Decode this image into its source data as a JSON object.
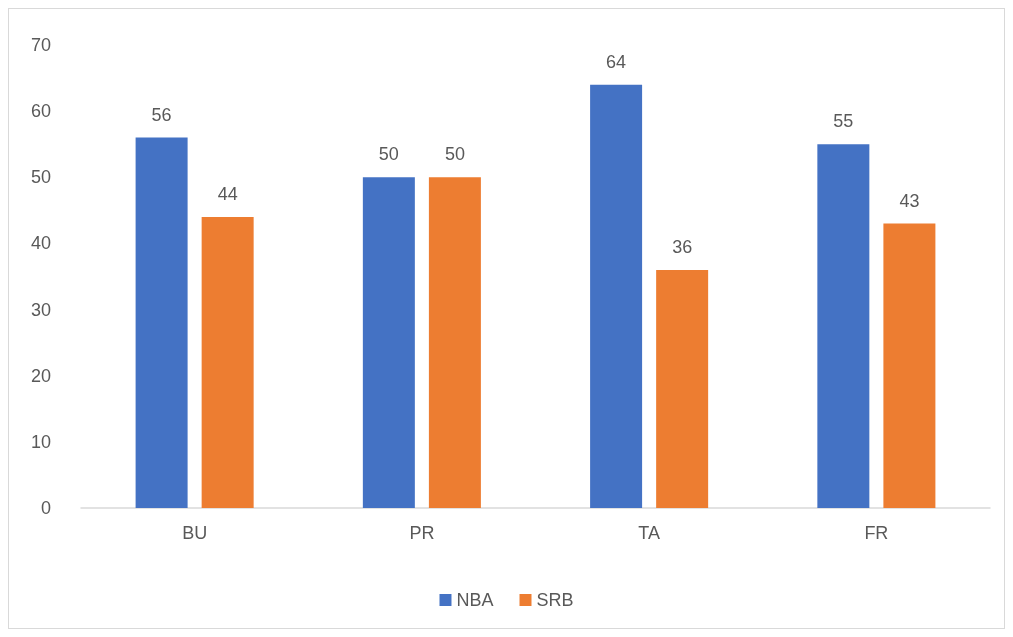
{
  "chart_data": {
    "type": "bar",
    "categories": [
      "BU",
      "PR",
      "TA",
      "FR"
    ],
    "series": [
      {
        "name": "NBA",
        "color": "#4472c4",
        "values": [
          56,
          50,
          64,
          55
        ]
      },
      {
        "name": "SRB",
        "color": "#ed7d31",
        "values": [
          44,
          50,
          36,
          43
        ]
      }
    ],
    "ylim": [
      0,
      70
    ],
    "yticks": [
      0,
      10,
      20,
      30,
      40,
      50,
      60,
      70
    ],
    "grid": false,
    "legend": "bottom",
    "data_labels": true
  }
}
